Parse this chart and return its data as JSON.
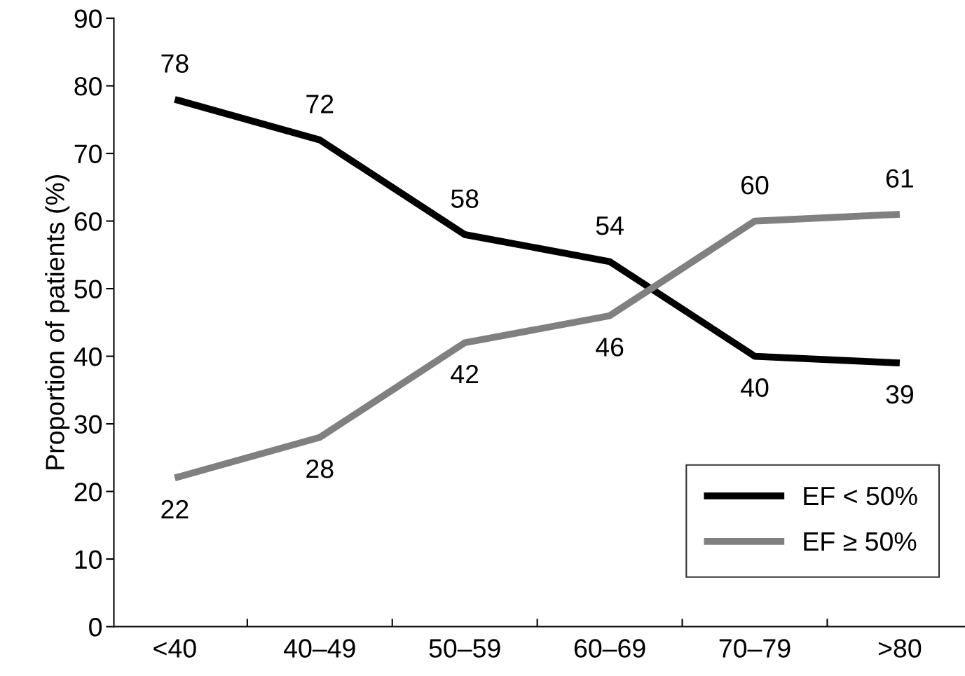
{
  "chart_data": {
    "type": "line",
    "categories": [
      "<40",
      "40–49",
      "50–59",
      "60–69",
      "70–79",
      ">80"
    ],
    "series": [
      {
        "name": "EF < 50%",
        "color": "#000000",
        "values": [
          78,
          72,
          58,
          54,
          40,
          39
        ]
      },
      {
        "name": "EF ≥ 50%",
        "color": "#808080",
        "values": [
          22,
          28,
          42,
          46,
          60,
          61
        ]
      }
    ],
    "ylabel": "Proportion of patients (%)",
    "ylim": [
      0,
      90
    ],
    "yticks": [
      0,
      10,
      20,
      30,
      40,
      50,
      60,
      70,
      80,
      90
    ],
    "data_labels": true,
    "grid": false,
    "legend": "bottom right",
    "marker": "none",
    "line_style": "solid"
  }
}
